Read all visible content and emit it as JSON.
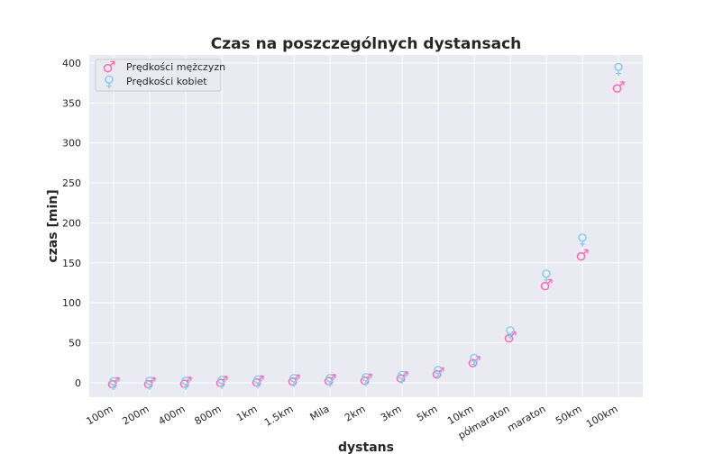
{
  "colors": {
    "male": "#ff69b4",
    "female": "#87ceeb",
    "background": "#eaeaf2",
    "grid": "#ffffff"
  },
  "chart_data": {
    "type": "scatter",
    "title": "Czas na poszczególnych dystansach",
    "xlabel": "dystans",
    "ylabel": "czas [min]",
    "categories": [
      "100m",
      "200m",
      "400m",
      "800m",
      "1km",
      "1.5km",
      "Mila",
      "2km",
      "3km",
      "5km",
      "10km",
      "półmaraton",
      "maraton",
      "50km",
      "100km"
    ],
    "yticks": [
      "0",
      "50",
      "100",
      "150",
      "200",
      "250",
      "300",
      "350",
      "400"
    ],
    "ylim": [
      -18,
      410
    ],
    "grid": true,
    "legend_position": "top-left",
    "series": [
      {
        "name": "Prędkości mężczyzn",
        "marker": "♂",
        "color": "#ff69b4",
        "values": [
          0.2,
          0.3,
          0.7,
          1.7,
          2.2,
          3.5,
          3.7,
          4.7,
          7.3,
          12.6,
          26.3,
          57.5,
          122.6,
          159.9,
          370.0
        ]
      },
      {
        "name": "Prędkości kobiet",
        "marker": "♀",
        "color": "#87ceeb",
        "values": [
          0.2,
          0.4,
          0.8,
          1.9,
          2.5,
          3.9,
          4.2,
          5.3,
          8.1,
          14.2,
          29.3,
          63.6,
          134.4,
          179.8,
          393.0
        ]
      }
    ]
  }
}
